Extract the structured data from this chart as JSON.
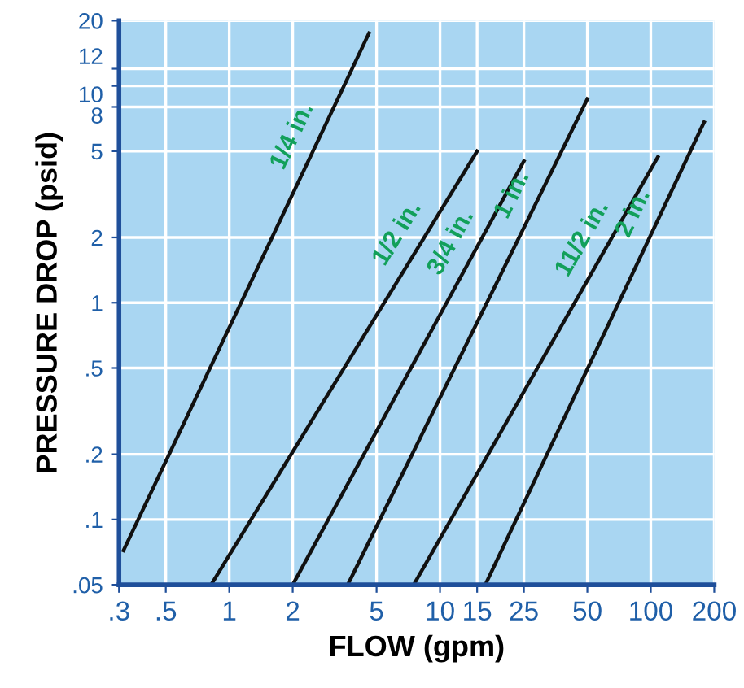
{
  "chart_data": {
    "type": "line",
    "xlabel": "FLOW (gpm)",
    "ylabel": "PRESSURE DROP (psid)",
    "log": "xy",
    "grid": true,
    "marker": "none",
    "line_style": "solid",
    "xlim": [
      0.3,
      200
    ],
    "ylim": [
      0.05,
      20
    ],
    "xticks": [
      {
        "value": 0.3,
        "label": ".3"
      },
      {
        "value": 0.5,
        "label": ".5"
      },
      1,
      2,
      5,
      10,
      15,
      25,
      50,
      100,
      200
    ],
    "yticks": [
      {
        "value": 0.05,
        "label": ".05"
      },
      {
        "value": 0.1,
        "label": ".1"
      },
      {
        "value": 0.2,
        "label": ".2"
      },
      {
        "value": 0.5,
        "label": ".5"
      },
      1,
      2,
      5,
      8,
      10,
      12,
      20
    ],
    "series": [
      {
        "name": "1/4 in.",
        "color": "#111111",
        "x": [
          0.315,
          4.6
        ],
        "values": [
          0.072,
          17.5
        ]
      },
      {
        "name": "1/2 in.",
        "color": "#111111",
        "x": [
          0.82,
          15
        ],
        "values": [
          0.05,
          5
        ]
      },
      {
        "name": "3/4 in.",
        "color": "#111111",
        "x": [
          2,
          25
        ],
        "values": [
          0.05,
          4.5
        ]
      },
      {
        "name": "1 in.",
        "color": "#111111",
        "x": [
          3.65,
          50
        ],
        "values": [
          0.05,
          8.7
        ]
      },
      {
        "name": "11/2 in.",
        "color": "#111111",
        "x": [
          7.5,
          108
        ],
        "values": [
          0.05,
          4.7
        ]
      },
      {
        "name": "2 in.",
        "color": "#111111",
        "x": [
          16.4,
          179
        ],
        "values": [
          0.05,
          6.8
        ]
      }
    ]
  }
}
